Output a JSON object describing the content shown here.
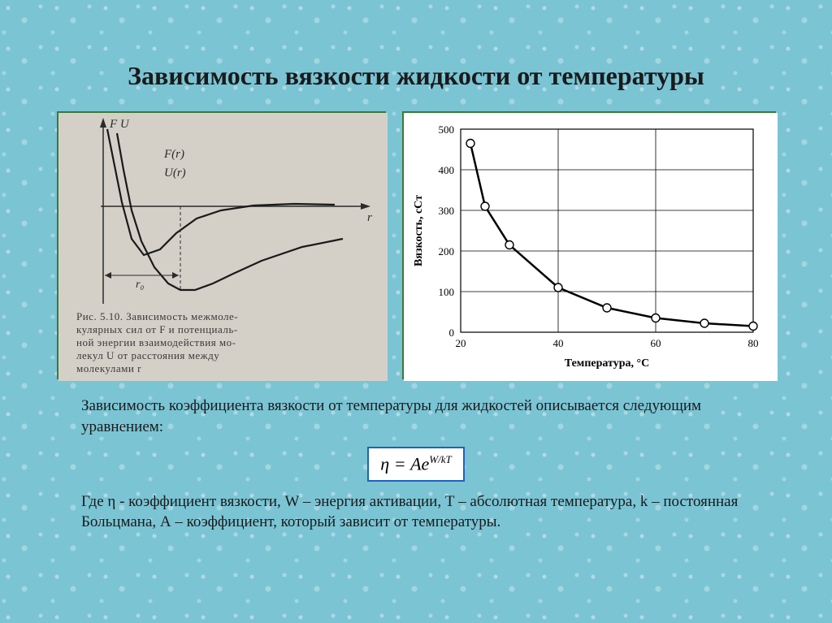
{
  "title": "Зависимость вязкости жидкости от температуры",
  "left_figure": {
    "type": "line",
    "background_color": "#d4d0c8",
    "axis_color": "#2a2a2a",
    "curve_color": "#1a1a1a",
    "curve_width": 2.2,
    "y_axis_label_top": "F U",
    "x_axis_label_right": "r",
    "curve_labels": {
      "F": "F(r)",
      "U": "U(r)"
    },
    "r0_label": "r₀",
    "caption_prefix": "Рис. 5.10.",
    "caption": "Зависимость межмоле-кулярных сил от F и потенциаль-ной энергии взаимодействия мо-лекул U от расстояния между молекулами r",
    "caption_fontsize": 13,
    "curves": {
      "F": [
        [
          60,
          20
        ],
        [
          68,
          60
        ],
        [
          78,
          110
        ],
        [
          90,
          155
        ],
        [
          105,
          175
        ],
        [
          125,
          168
        ],
        [
          145,
          148
        ],
        [
          170,
          130
        ],
        [
          200,
          120
        ],
        [
          240,
          114
        ],
        [
          290,
          112
        ],
        [
          340,
          113
        ]
      ],
      "U": [
        [
          72,
          25
        ],
        [
          80,
          70
        ],
        [
          90,
          120
        ],
        [
          102,
          158
        ],
        [
          118,
          190
        ],
        [
          135,
          210
        ],
        [
          150,
          218
        ],
        [
          168,
          218
        ],
        [
          190,
          210
        ],
        [
          215,
          198
        ],
        [
          250,
          182
        ],
        [
          300,
          165
        ],
        [
          350,
          155
        ]
      ]
    },
    "x_axis_y": 115,
    "y_axis_x": 55,
    "dashed_line": {
      "x": 150,
      "y_from": 115,
      "y_to": 218
    }
  },
  "right_figure": {
    "type": "line",
    "background_color": "#ffffff",
    "axis_color": "#000000",
    "grid_color": "#000000",
    "curve_color": "#000000",
    "curve_width": 2.5,
    "marker_style": "circle-open",
    "marker_size": 5,
    "xlabel": "Температура, °С",
    "ylabel": "Вязкость, сСт",
    "label_fontsize": 14,
    "tick_fontsize": 13,
    "xlim": [
      20,
      80
    ],
    "ylim": [
      0,
      500
    ],
    "xticks": [
      20,
      40,
      60,
      80
    ],
    "yticks": [
      0,
      100,
      200,
      300,
      400,
      500
    ],
    "data": [
      {
        "x": 22,
        "y": 465
      },
      {
        "x": 25,
        "y": 310
      },
      {
        "x": 30,
        "y": 215
      },
      {
        "x": 40,
        "y": 110
      },
      {
        "x": 50,
        "y": 60
      },
      {
        "x": 60,
        "y": 35
      },
      {
        "x": 70,
        "y": 22
      },
      {
        "x": 80,
        "y": 15
      }
    ]
  },
  "paragraph1": "Зависимость коэффициента вязкости от температуры для жидкостей описывается следующим уравнением:",
  "formula": {
    "lhs": "η",
    "rhs_base": "Ae",
    "rhs_exp": "W/kT",
    "border_color": "#2060c0"
  },
  "paragraph2": "Где η - коэффициент вязкости, W – энергия активации, Т – абсолютная температура, k – постоянная Больцмана, А – коэффициент, который зависит от температуры."
}
